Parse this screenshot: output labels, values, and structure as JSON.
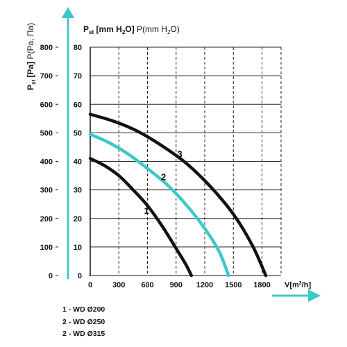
{
  "chart_data": {
    "type": "line",
    "title": "",
    "ylabel_left": "P st [Pa] P(Pa, Па)",
    "ylabel_right": "P st [mm H2O] P(mm H2O)",
    "xlabel": "V[m³/h]",
    "x_ticks": [
      "0",
      "300",
      "600",
      "900",
      "1200",
      "1500",
      "1800"
    ],
    "y_ticks_pa": [
      "0",
      "100",
      "200",
      "300",
      "400",
      "500",
      "600",
      "700",
      "800"
    ],
    "y_ticks_mm": [
      "0",
      "10",
      "20",
      "30",
      "40",
      "50",
      "60",
      "70",
      "80"
    ],
    "xlim": [
      0,
      2000
    ],
    "ylim": [
      0,
      800
    ],
    "grid": true,
    "series": [
      {
        "name": "1",
        "color": "#111111",
        "x": [
          0,
          150,
          300,
          450,
          600,
          750,
          900,
          1000,
          1060
        ],
        "y": [
          410,
          385,
          350,
          300,
          245,
          175,
          95,
          40,
          0
        ]
      },
      {
        "name": "2",
        "color": "#3cc8c8",
        "x": [
          0,
          200,
          400,
          600,
          800,
          1000,
          1200,
          1350,
          1450
        ],
        "y": [
          495,
          465,
          425,
          375,
          320,
          250,
          165,
          85,
          0
        ]
      },
      {
        "name": "3",
        "color": "#111111",
        "x": [
          0,
          250,
          500,
          750,
          1000,
          1250,
          1500,
          1700,
          1840
        ],
        "y": [
          565,
          540,
          505,
          455,
          395,
          315,
          215,
          105,
          0
        ]
      }
    ],
    "legend": [
      "1 - WD Ø200",
      "2 - WD Ø250",
      "2 - WD Ø315"
    ]
  }
}
